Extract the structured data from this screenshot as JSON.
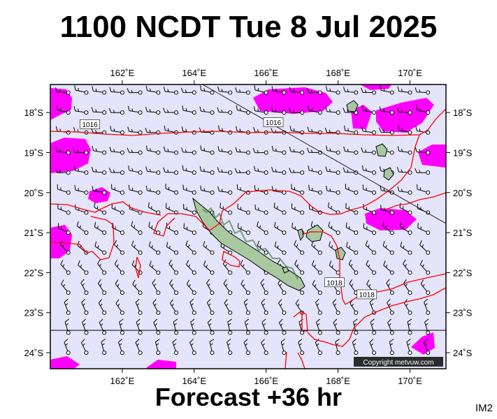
{
  "header": {
    "title": "1100 NCDT Tue 8 Jul 2025"
  },
  "footer": {
    "forecast": "Forecast +36 hr",
    "image_id": "IM2"
  },
  "copyright": "Copyright metvuw.com",
  "map": {
    "lon_range": [
      160,
      171
    ],
    "lat_range": [
      -24.4,
      -17.3
    ],
    "lon_ticks": [
      {
        "v": 162,
        "label": "162˚E"
      },
      {
        "v": 164,
        "label": "164˚E"
      },
      {
        "v": 166,
        "label": "166˚E"
      },
      {
        "v": 168,
        "label": "168˚E"
      },
      {
        "v": 170,
        "label": "170˚E"
      }
    ],
    "lat_ticks": [
      {
        "v": -18,
        "label": "18˚S"
      },
      {
        "v": -19,
        "label": "19˚S"
      },
      {
        "v": -20,
        "label": "20˚S"
      },
      {
        "v": -21,
        "label": "21˚S"
      },
      {
        "v": -22,
        "label": "22˚S"
      },
      {
        "v": -23,
        "label": "23˚S"
      },
      {
        "v": -24,
        "label": "24˚S"
      }
    ],
    "tropic_lat": -23.44,
    "isobar_labels": [
      {
        "text": "1016",
        "lon": 161.1,
        "lat": -18.3
      },
      {
        "text": "1016",
        "lon": 166.2,
        "lat": -18.25
      },
      {
        "text": "1018",
        "lon": 167.9,
        "lat": -22.25
      },
      {
        "text": "1018",
        "lon": 168.8,
        "lat": -22.55
      }
    ],
    "colors": {
      "background": "#e4e4fa",
      "isobar": "#ff0000",
      "strong_wind": "#ff00ff",
      "land": "#a8c8a0",
      "coast": "#000000"
    }
  }
}
